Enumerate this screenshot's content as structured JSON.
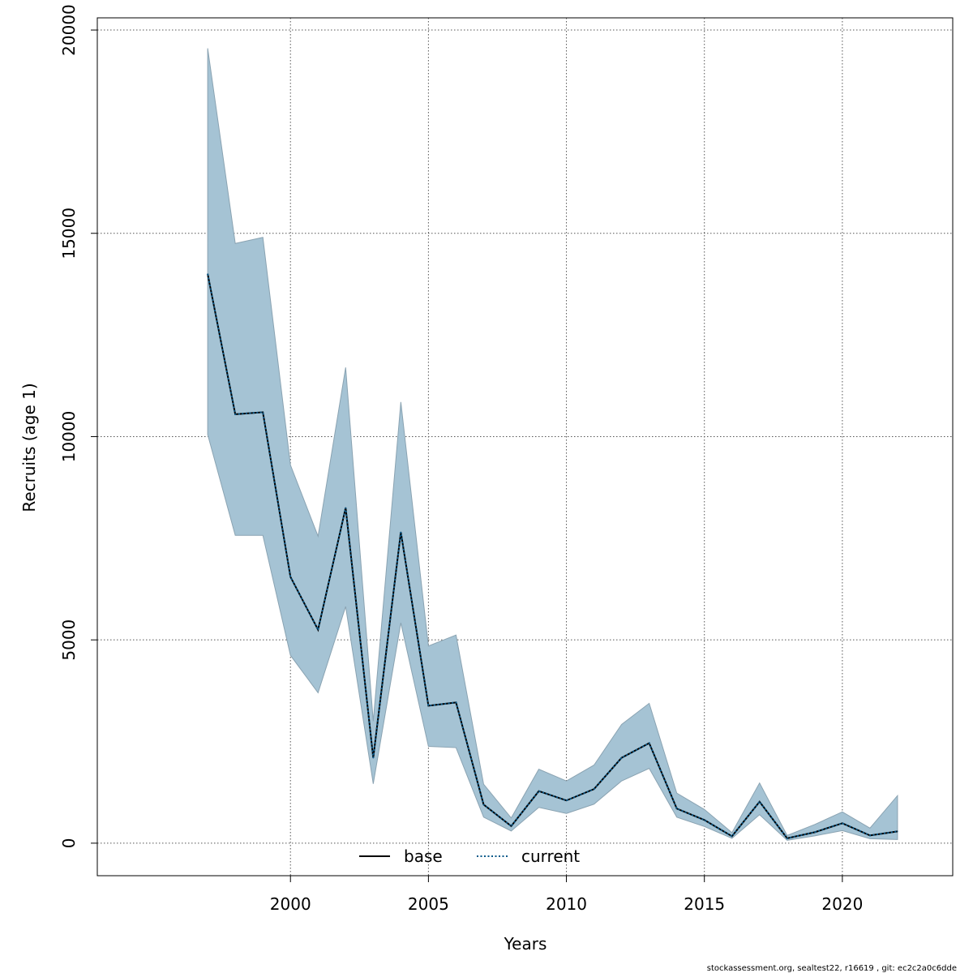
{
  "chart_data": {
    "type": "line",
    "xlabel": "Years",
    "ylabel": "Recruits (age 1)",
    "xlim": [
      1993,
      2024
    ],
    "ylim": [
      -800,
      20300
    ],
    "x_ticks": [
      2000,
      2005,
      2010,
      2015,
      2020
    ],
    "y_ticks": [
      0,
      5000,
      10000,
      15000,
      20000
    ],
    "grid": true,
    "legend_position": "bottom-center",
    "x": [
      1997,
      1998,
      1999,
      2000,
      2001,
      2002,
      2003,
      2004,
      2005,
      2006,
      2007,
      2008,
      2009,
      2010,
      2011,
      2012,
      2013,
      2014,
      2015,
      2016,
      2017,
      2018,
      2019,
      2020,
      2021,
      2022
    ],
    "series": [
      {
        "name": "base",
        "style": "solid",
        "color": "#000000",
        "values": [
          14000,
          10550,
          10600,
          6550,
          5250,
          8250,
          2100,
          7650,
          3380,
          3460,
          950,
          420,
          1280,
          1050,
          1330,
          2100,
          2460,
          850,
          570,
          170,
          1020,
          120,
          270,
          490,
          190,
          290
        ]
      },
      {
        "name": "current",
        "style": "dotted",
        "color": "#0b5a8a",
        "values": [
          14000,
          10550,
          10600,
          6550,
          5250,
          8250,
          2100,
          7650,
          3380,
          3460,
          950,
          420,
          1280,
          1050,
          1330,
          2100,
          2460,
          850,
          570,
          170,
          1020,
          120,
          270,
          490,
          190,
          290
        ]
      }
    ],
    "interval": {
      "upper": [
        19550,
        14750,
        14900,
        9300,
        7550,
        11700,
        3000,
        10850,
        4850,
        5120,
        1450,
        620,
        1820,
        1530,
        1920,
        2920,
        3440,
        1230,
        830,
        260,
        1480,
        190,
        460,
        770,
        370,
        1170
      ],
      "lower": [
        10050,
        7570,
        7570,
        4620,
        3700,
        5820,
        1460,
        5420,
        2380,
        2350,
        640,
        300,
        880,
        730,
        960,
        1530,
        1840,
        640,
        410,
        120,
        700,
        70,
        180,
        310,
        110,
        90
      ],
      "fill_color": "#a5c3d4",
      "edge_color": "#8aa3b2"
    },
    "footer": "stockassessment.org, sealtest22, r16619 , git: ec2c2a0c6dde"
  }
}
